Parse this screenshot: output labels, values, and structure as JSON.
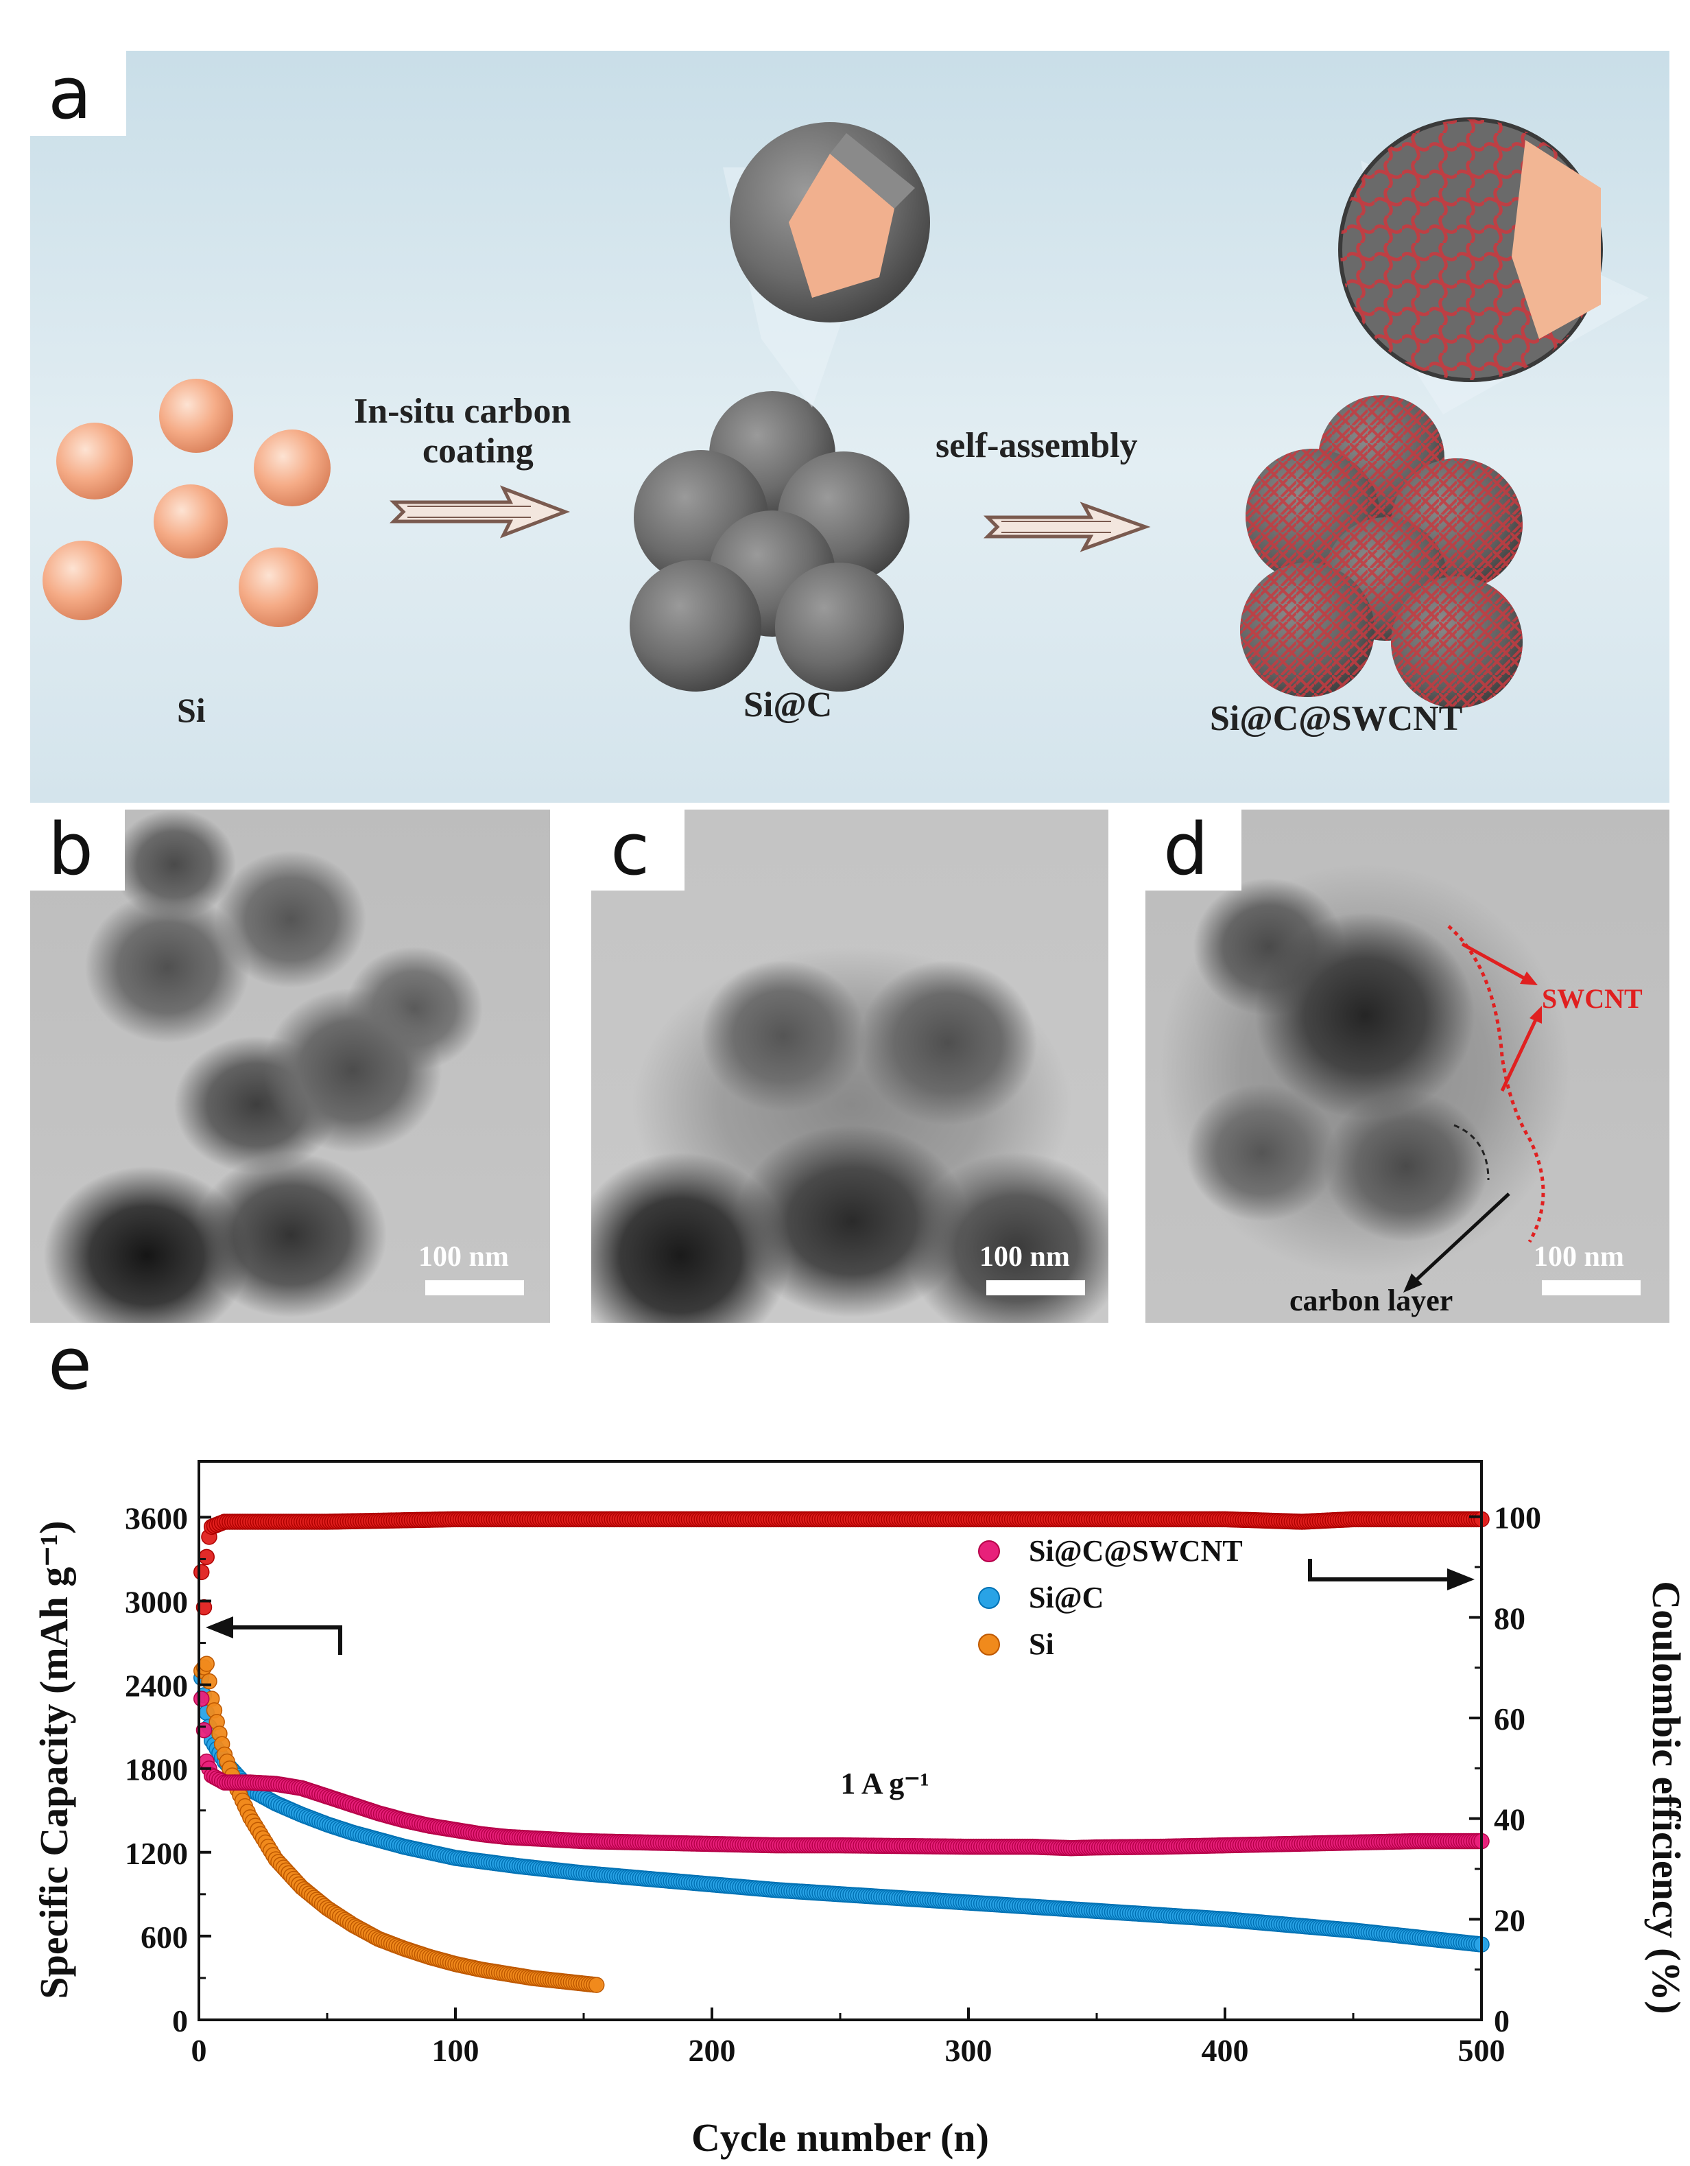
{
  "panels": {
    "a": {
      "letter": "a",
      "labels": {
        "si": "Si",
        "sic": "Si@C",
        "sicswcnt": "Si@C@SWCNT"
      },
      "arrow1_line1": "In-situ carbon",
      "arrow1_line2": "coating",
      "arrow2": "self-assembly",
      "colors": {
        "si_particle": "#f4a883",
        "carbon_shell": "#6b6b6b",
        "swcnt": "#c4393f",
        "background": "#dde9ef"
      }
    },
    "b": {
      "letter": "b",
      "scale": "100 nm"
    },
    "c": {
      "letter": "c",
      "scale": "100 nm"
    },
    "d": {
      "letter": "d",
      "scale": "100 nm",
      "swcnt_label": "SWCNT",
      "carbon_label": "carbon layer"
    },
    "e": {
      "letter": "e"
    }
  },
  "chart_data": {
    "type": "scatter",
    "xlabel": "Cycle number (n)",
    "ylabel": "Specific Capacity (mAh g⁻¹)",
    "y2label": "Coulombic efficiency (%)",
    "annotation": "1 A g⁻¹",
    "xlim": [
      0,
      500
    ],
    "ylim": [
      0,
      4000
    ],
    "y2lim": [
      0,
      111
    ],
    "xticks": [
      "0",
      "100",
      "200",
      "300",
      "400",
      "500"
    ],
    "yticks": [
      "0",
      "600",
      "1200",
      "1800",
      "2400",
      "3000",
      "3600"
    ],
    "y2ticks": [
      "0",
      "20",
      "40",
      "60",
      "80",
      "100"
    ],
    "legend_position": "top-right",
    "series": [
      {
        "name": "Si@C@SWCNT",
        "color": "#e8207a",
        "axis": "left",
        "x": [
          1,
          3,
          5,
          10,
          20,
          30,
          40,
          50,
          60,
          70,
          80,
          90,
          100,
          110,
          120,
          130,
          140,
          150,
          175,
          200,
          225,
          250,
          275,
          300,
          325,
          340,
          350,
          375,
          400,
          425,
          450,
          475,
          500
        ],
        "y": [
          2300,
          1850,
          1750,
          1700,
          1700,
          1690,
          1660,
          1600,
          1540,
          1480,
          1430,
          1390,
          1360,
          1330,
          1310,
          1300,
          1290,
          1280,
          1270,
          1260,
          1250,
          1250,
          1245,
          1240,
          1240,
          1230,
          1235,
          1240,
          1250,
          1260,
          1270,
          1280,
          1280
        ]
      },
      {
        "name": "Si@C",
        "color": "#29a3e6",
        "axis": "left",
        "x": [
          1,
          3,
          5,
          10,
          20,
          30,
          40,
          50,
          60,
          70,
          80,
          90,
          100,
          125,
          150,
          175,
          200,
          225,
          250,
          275,
          300,
          325,
          350,
          375,
          400,
          425,
          450,
          475,
          500
        ],
        "y": [
          2450,
          2200,
          2000,
          1850,
          1650,
          1550,
          1470,
          1400,
          1340,
          1290,
          1240,
          1200,
          1160,
          1100,
          1050,
          1010,
          970,
          930,
          900,
          870,
          840,
          810,
          780,
          750,
          720,
          680,
          640,
          590,
          540
        ]
      },
      {
        "name": "Si",
        "color": "#f08a1c",
        "axis": "left",
        "x": [
          1,
          3,
          5,
          8,
          10,
          15,
          20,
          25,
          30,
          40,
          50,
          60,
          70,
          80,
          90,
          100,
          110,
          120,
          130,
          140,
          150,
          155
        ],
        "y": [
          2500,
          2550,
          2300,
          2050,
          1900,
          1650,
          1450,
          1300,
          1150,
          950,
          800,
          680,
          580,
          510,
          450,
          400,
          360,
          330,
          300,
          280,
          260,
          250
        ]
      },
      {
        "name": "",
        "color": "#e0201e",
        "axis": "right",
        "x": [
          1,
          2,
          3,
          4,
          5,
          10,
          20,
          50,
          100,
          150,
          200,
          250,
          300,
          350,
          400,
          430,
          450,
          500
        ],
        "y": [
          89,
          82,
          92,
          96,
          98,
          99,
          99,
          99,
          99.5,
          99.5,
          99.5,
          99.5,
          99.5,
          99.5,
          99.5,
          99,
          99.5,
          99.5
        ]
      }
    ]
  }
}
